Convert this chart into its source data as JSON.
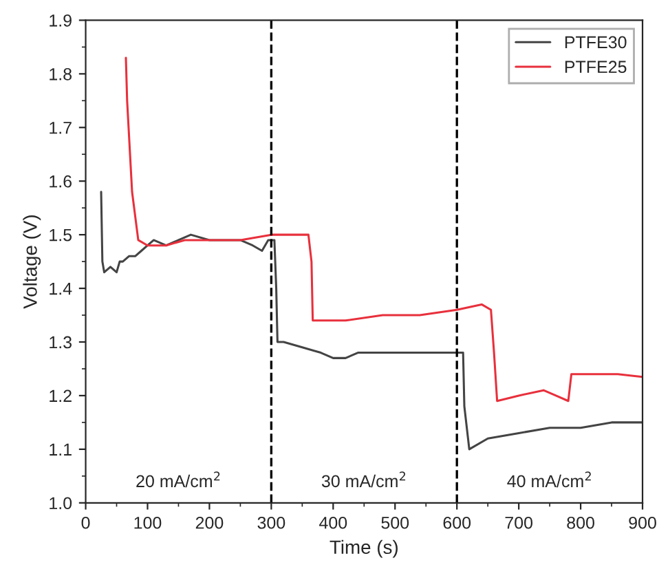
{
  "chart_data": {
    "type": "line",
    "xlabel": "Time (s)",
    "ylabel": "Voltage (V)",
    "xlim": [
      0,
      900
    ],
    "xticks": [
      0,
      100,
      200,
      300,
      400,
      500,
      600,
      700,
      800,
      900
    ],
    "ylim": [
      1.0,
      1.9
    ],
    "yticks": [
      {
        "value": 1.0,
        "label": "1.0"
      },
      1.1,
      1.2,
      1.3,
      1.4,
      1.5,
      1.6,
      1.7,
      1.8,
      1.9
    ],
    "legend": "top right",
    "grid": false,
    "series": [
      {
        "name": "PTFE30",
        "color": "#444444",
        "x": [
          25,
          27,
          30,
          40,
          50,
          55,
          60,
          70,
          80,
          90,
          100,
          110,
          130,
          150,
          170,
          200,
          230,
          250,
          270,
          285,
          290,
          295,
          300,
          305,
          308,
          310,
          320,
          350,
          380,
          400,
          420,
          440,
          460,
          500,
          550,
          600,
          610,
          612,
          620,
          650,
          700,
          750,
          800,
          850,
          900
        ],
        "values": [
          1.58,
          1.45,
          1.43,
          1.44,
          1.43,
          1.45,
          1.45,
          1.46,
          1.46,
          1.47,
          1.48,
          1.49,
          1.48,
          1.49,
          1.5,
          1.49,
          1.49,
          1.49,
          1.48,
          1.47,
          1.48,
          1.49,
          1.49,
          1.49,
          1.4,
          1.3,
          1.3,
          1.29,
          1.28,
          1.27,
          1.27,
          1.28,
          1.28,
          1.28,
          1.28,
          1.28,
          1.28,
          1.18,
          1.1,
          1.12,
          1.13,
          1.14,
          1.14,
          1.15,
          1.15
        ]
      },
      {
        "name": "PTFE25",
        "color": "#e8303c",
        "x": [
          65,
          67,
          75,
          85,
          100,
          130,
          160,
          200,
          250,
          300,
          330,
          360,
          365,
          367,
          380,
          420,
          480,
          540,
          600,
          640,
          655,
          660,
          665,
          700,
          740,
          760,
          780,
          782,
          785,
          820,
          860,
          900
        ],
        "values": [
          1.83,
          1.75,
          1.58,
          1.49,
          1.48,
          1.48,
          1.49,
          1.49,
          1.49,
          1.5,
          1.5,
          1.5,
          1.45,
          1.34,
          1.34,
          1.34,
          1.35,
          1.35,
          1.36,
          1.37,
          1.36,
          1.28,
          1.19,
          1.2,
          1.21,
          1.2,
          1.19,
          1.21,
          1.24,
          1.24,
          1.24,
          1.235
        ]
      }
    ],
    "ref_lines": [
      {
        "axis": "x",
        "value": 300,
        "color": "#000000",
        "line_style": "dashed"
      },
      {
        "axis": "x",
        "value": 600,
        "color": "#000000",
        "line_style": "dashed"
      }
    ],
    "annotations": [
      "20 mA/cm$^{2}$",
      "30 mA/cm$^{2}$",
      "40 mA/cm$^{2}$"
    ]
  }
}
